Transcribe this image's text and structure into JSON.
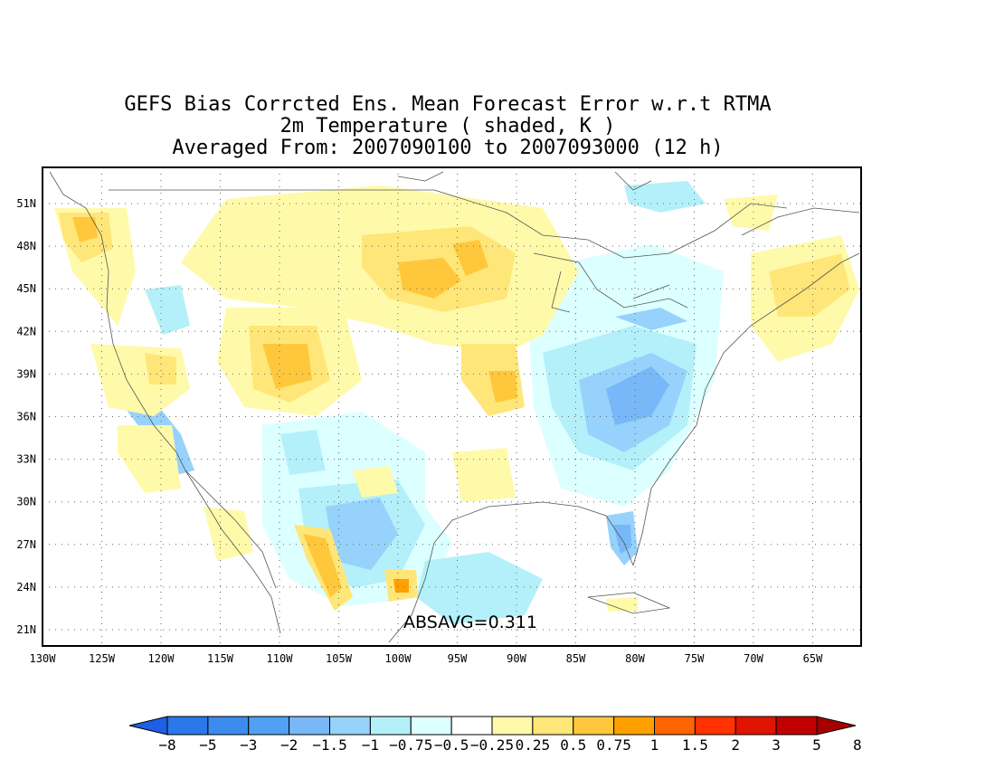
{
  "title": {
    "line1": "GEFS Bias Corrcted Ens. Mean Forecast Error w.r.t RTMA",
    "line2": "2m Temperature ( shaded, K )",
    "line3": "Averaged From: 2007090100 to 2007093000 (12 h)"
  },
  "annotation": "ABSAVG=0.311",
  "lat_labels": [
    "51N",
    "48N",
    "45N",
    "42N",
    "39N",
    "36N",
    "33N",
    "30N",
    "27N",
    "24N",
    "21N"
  ],
  "lon_labels": [
    "130W",
    "125W",
    "120W",
    "115W",
    "110W",
    "105W",
    "100W",
    "95W",
    "90W",
    "85W",
    "80W",
    "75W",
    "70W",
    "65W"
  ],
  "colorbar": {
    "labels": [
      "-8",
      "-5",
      "-3",
      "-2",
      "-1.5",
      "-1",
      "-0.75",
      "-0.5",
      "-0.25",
      "0.25",
      "0.5",
      "0.75",
      "1",
      "1.5",
      "2",
      "3",
      "5",
      "8"
    ],
    "colors": [
      "#1e5fe6",
      "#2a78ea",
      "#3c8cf0",
      "#50a0f4",
      "#78b8f8",
      "#96d2fc",
      "#b4f0fa",
      "#dcffff",
      "#ffffff",
      "#fffaaa",
      "#ffe678",
      "#ffc83c",
      "#ffa000",
      "#ff6400",
      "#ff3200",
      "#e11400",
      "#c00000",
      "#a50000"
    ]
  },
  "colors": {
    "cool1": "#dcffff",
    "cool2": "#b4f0fa",
    "cool3": "#96d2fc",
    "cool4": "#78b8f8",
    "cool5": "#50a0f4",
    "warm1": "#fffaaa",
    "warm2": "#ffe678",
    "warm3": "#ffc83c",
    "warm4": "#ffa000",
    "warm5": "#ff6400"
  }
}
